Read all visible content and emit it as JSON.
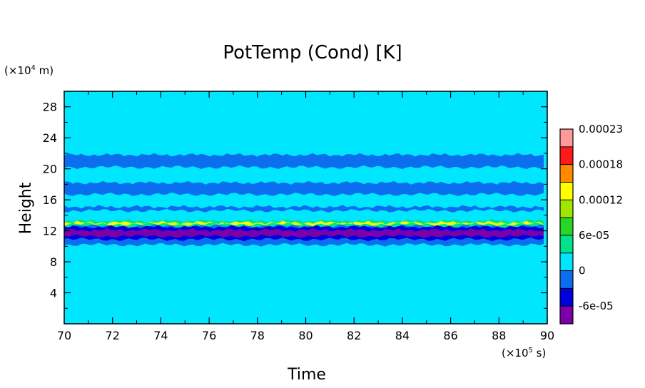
{
  "chart_data": {
    "type": "heatmap",
    "title": "PotTemp (Cond) [K]",
    "xlabel": "Time",
    "ylabel": "Height",
    "x_scale_label": "(×10",
    "x_scale_exp": "5",
    "x_scale_unit": " s)",
    "y_scale_label": "(×10",
    "y_scale_exp": "4",
    "y_scale_unit": " m)",
    "xlim": [
      70,
      90
    ],
    "ylim": [
      0,
      30
    ],
    "x_ticks": [
      "70",
      "72",
      "74",
      "76",
      "78",
      "80",
      "82",
      "84",
      "86",
      "88",
      "90"
    ],
    "y_ticks": [
      "4",
      "8",
      "12",
      "16",
      "20",
      "24",
      "28"
    ],
    "colorbar": {
      "tick_labels": [
        "-6e-05",
        "0",
        "6e-05",
        "0.00012",
        "0.00018",
        "0.00023"
      ],
      "colors": [
        "#7b00a8",
        "#0000e0",
        "#0a6eef",
        "#00e6ff",
        "#00e38c",
        "#28d628",
        "#a0e600",
        "#ffff00",
        "#ff8a00",
        "#ff1a1a",
        "#ff9a9a"
      ]
    },
    "background_color": "#00e6ff",
    "bands": [
      {
        "y_from": 20.2,
        "y_to": 21.8,
        "color": "#0a6eef"
      },
      {
        "y_from": 16.7,
        "y_to": 18.2,
        "color": "#0a6eef"
      },
      {
        "y_from": 14.6,
        "y_to": 15.1,
        "color": "#0a6eef"
      },
      {
        "y_from": 10.2,
        "y_to": 12.9,
        "color": "#0a6eef"
      },
      {
        "y_from": 12.6,
        "y_to": 13.3,
        "color": "#00e38c"
      },
      {
        "y_from": 12.85,
        "y_to": 13.05,
        "color": "#ffff00"
      },
      {
        "y_from": 10.9,
        "y_to": 12.5,
        "color": "#0000e0"
      },
      {
        "y_from": 11.3,
        "y_to": 12.1,
        "color": "#7b00a8"
      }
    ]
  }
}
